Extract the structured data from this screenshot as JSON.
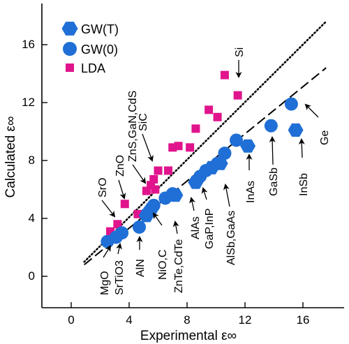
{
  "chart_data": {
    "type": "scatter",
    "xlabel": "Experimental ε∞",
    "ylabel": "Calculated ε∞",
    "xlim": [
      -2.5,
      18.8
    ],
    "ylim": [
      -2.3,
      18.8
    ],
    "x_ticks": [
      0,
      4,
      8,
      12,
      16
    ],
    "y_ticks": [
      0,
      4,
      8,
      12,
      16
    ],
    "x_tick_labels": [
      "0",
      "4",
      "8",
      "12",
      "16"
    ],
    "y_tick_labels": [
      "0",
      "4",
      "8",
      "12",
      "16"
    ],
    "grid": false,
    "legend_position": "top-left",
    "colors": {
      "gw": "#1f6fd6",
      "lda": "#e0148c"
    },
    "series": [
      {
        "name": "GW(T)",
        "marker": "hexagon",
        "points": [
          [
            5.2,
            4.2
          ],
          [
            5.5,
            4.6
          ],
          [
            7.2,
            5.6
          ],
          [
            8.6,
            6.5
          ],
          [
            9.7,
            7.5
          ],
          [
            10.3,
            7.8
          ],
          [
            12.2,
            9.0
          ],
          [
            15.5,
            10.1
          ]
        ]
      },
      {
        "name": "GW(0)",
        "marker": "circle",
        "points": [
          [
            2.5,
            2.4
          ],
          [
            3.1,
            2.7
          ],
          [
            3.5,
            3.0
          ],
          [
            4.7,
            3.4
          ],
          [
            5.4,
            4.5
          ],
          [
            5.7,
            4.9
          ],
          [
            6.5,
            5.4
          ],
          [
            7.0,
            5.7
          ],
          [
            8.9,
            6.9
          ],
          [
            9.3,
            7.3
          ],
          [
            10.1,
            7.8
          ],
          [
            10.6,
            8.5
          ],
          [
            11.4,
            9.4
          ],
          [
            13.8,
            10.4
          ],
          [
            15.2,
            11.9
          ]
        ]
      },
      {
        "name": "LDA",
        "marker": "square",
        "points": [
          [
            2.7,
            3.1
          ],
          [
            3.2,
            3.6
          ],
          [
            3.7,
            5.0
          ],
          [
            4.6,
            4.3
          ],
          [
            5.2,
            5.9
          ],
          [
            5.5,
            6.3
          ],
          [
            5.8,
            6.0
          ],
          [
            5.7,
            6.7
          ],
          [
            6.0,
            7.3
          ],
          [
            6.7,
            7.3
          ],
          [
            7.0,
            8.9
          ],
          [
            7.4,
            9.0
          ],
          [
            8.2,
            8.9
          ],
          [
            8.6,
            10.2
          ],
          [
            9.5,
            11.5
          ],
          [
            10.1,
            11.0
          ],
          [
            10.6,
            13.9
          ],
          [
            11.5,
            12.5
          ]
        ]
      }
    ],
    "lines": [
      {
        "style": "dotted",
        "x": [
          0.9,
          17.6
        ],
        "y": [
          1.0,
          17.6
        ]
      },
      {
        "style": "dashed",
        "x": [
          0.9,
          17.6
        ],
        "y": [
          0.8,
          14.4
        ]
      }
    ],
    "annotations": [
      {
        "text": "Si",
        "vertical": true
      },
      {
        "text": "SiC",
        "vertical": true
      },
      {
        "text": "ZnS,GaN,CdS",
        "vertical": true
      },
      {
        "text": "ZnO",
        "vertical": true
      },
      {
        "text": "SrO",
        "vertical": true
      },
      {
        "text": "MgO",
        "vertical": true
      },
      {
        "text": "SrTiO3",
        "vertical": true
      },
      {
        "text": "AlN",
        "vertical": true
      },
      {
        "text": "NiO,C",
        "vertical": true
      },
      {
        "text": "ZnTe,CdTe",
        "vertical": true
      },
      {
        "text": "AlAs",
        "vertical": true
      },
      {
        "text": "GaP,InP",
        "vertical": true
      },
      {
        "text": "AlSb,GaAs",
        "vertical": true
      },
      {
        "text": "InAs",
        "vertical": true
      },
      {
        "text": "GaSb",
        "vertical": true
      },
      {
        "text": "InSb",
        "vertical": true
      },
      {
        "text": "Ge",
        "vertical": true
      }
    ]
  }
}
